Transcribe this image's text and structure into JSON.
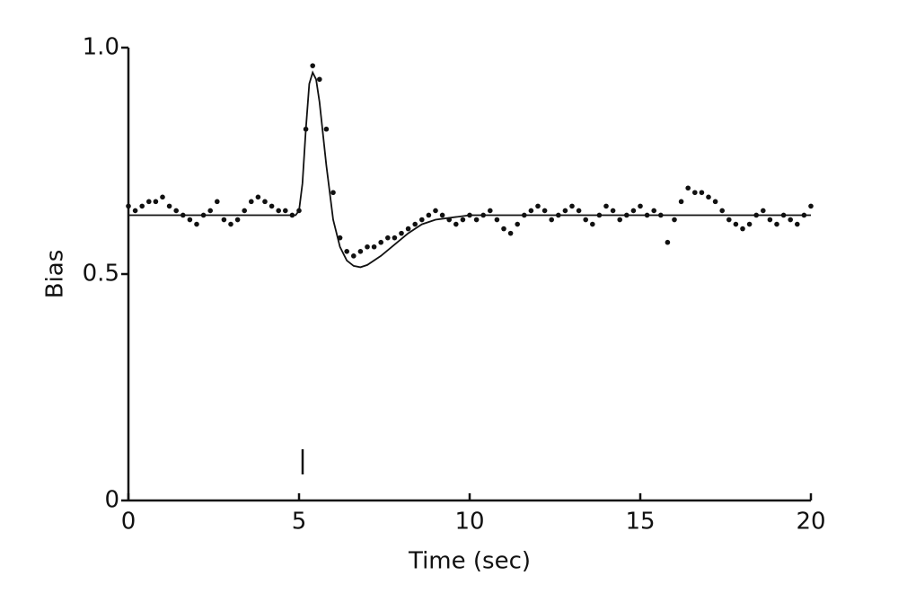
{
  "chart_data": {
    "type": "scatter",
    "x_label": "Time (sec)",
    "y_label": "Bias",
    "xlim": [
      0,
      20
    ],
    "xticks": [
      0,
      5,
      10,
      15,
      20
    ],
    "ylim": [
      0,
      1
    ],
    "yticks": [
      0,
      0.5,
      {
        "value": 1,
        "label": "1.0"
      }
    ],
    "grid": false,
    "points": {
      "color": "#111",
      "x": [
        0,
        0.2,
        0.4,
        0.6,
        0.8,
        1,
        1.2,
        1.4,
        1.6,
        1.8,
        2,
        2.2,
        2.4,
        2.6,
        2.8,
        3,
        3.2,
        3.4,
        3.6,
        3.8,
        4,
        4.2,
        4.4,
        4.6,
        4.8,
        5,
        5.2,
        5.4,
        5.6,
        5.8,
        6,
        6.2,
        6.4,
        6.6,
        6.8,
        7,
        7.2,
        7.4,
        7.6,
        7.8,
        8,
        8.2,
        8.4,
        8.6,
        8.8,
        9,
        9.2,
        9.4,
        9.6,
        9.8,
        10,
        10.2,
        10.4,
        10.6,
        10.8,
        11,
        11.2,
        11.4,
        11.6,
        11.8,
        12,
        12.2,
        12.4,
        12.6,
        12.8,
        13,
        13.2,
        13.4,
        13.6,
        13.8,
        14,
        14.2,
        14.4,
        14.6,
        14.8,
        15,
        15.2,
        15.4,
        15.6,
        15.8,
        16,
        16.2,
        16.4,
        16.6,
        16.8,
        17,
        17.2,
        17.4,
        17.6,
        17.8,
        18,
        18.2,
        18.4,
        18.6,
        18.8,
        19,
        19.2,
        19.4,
        19.6,
        19.8,
        20
      ],
      "values": [
        0.65,
        0.64,
        0.65,
        0.66,
        0.66,
        0.67,
        0.65,
        0.64,
        0.63,
        0.62,
        0.61,
        0.63,
        0.64,
        0.66,
        0.62,
        0.61,
        0.62,
        0.64,
        0.66,
        0.67,
        0.66,
        0.65,
        0.64,
        0.64,
        0.63,
        0.64,
        0.82,
        0.96,
        0.93,
        0.82,
        0.68,
        0.58,
        0.55,
        0.54,
        0.55,
        0.56,
        0.56,
        0.57,
        0.58,
        0.58,
        0.59,
        0.6,
        0.61,
        0.62,
        0.63,
        0.64,
        0.63,
        0.62,
        0.61,
        0.62,
        0.63,
        0.62,
        0.63,
        0.64,
        0.62,
        0.6,
        0.59,
        0.61,
        0.63,
        0.64,
        0.65,
        0.64,
        0.62,
        0.63,
        0.64,
        0.65,
        0.64,
        0.62,
        0.61,
        0.63,
        0.65,
        0.64,
        0.62,
        0.63,
        0.64,
        0.65,
        0.63,
        0.64,
        0.63,
        0.57,
        0.62,
        0.66,
        0.69,
        0.68,
        0.68,
        0.67,
        0.66,
        0.64,
        0.62,
        0.61,
        0.6,
        0.61,
        0.63,
        0.64,
        0.62,
        0.61,
        0.63,
        0.62,
        0.61,
        0.63,
        0.65
      ]
    },
    "fit": {
      "color": "#111",
      "x": [
        0,
        4.9,
        5,
        5.1,
        5.2,
        5.3,
        5.4,
        5.5,
        5.6,
        5.8,
        6,
        6.2,
        6.4,
        6.6,
        6.8,
        7,
        7.4,
        7.8,
        8.2,
        8.6,
        9,
        10,
        20
      ],
      "values": [
        0.63,
        0.63,
        0.64,
        0.7,
        0.82,
        0.92,
        0.945,
        0.93,
        0.88,
        0.74,
        0.62,
        0.56,
        0.53,
        0.518,
        0.515,
        0.52,
        0.54,
        0.565,
        0.59,
        0.61,
        0.62,
        0.63,
        0.63
      ]
    }
  }
}
